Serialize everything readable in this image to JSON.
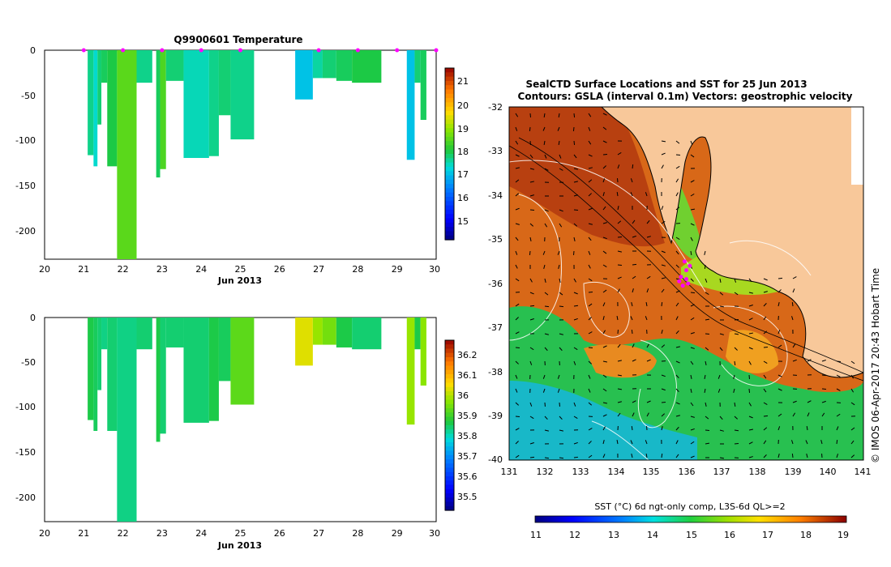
{
  "panel1": {
    "title": "Q9900601  Temperature",
    "xlabel": "Jun 2013",
    "x_ticks": [
      "20",
      "21",
      "22",
      "23",
      "24",
      "25",
      "26",
      "27",
      "28",
      "29",
      "30"
    ],
    "y_ticks": [
      "0",
      "-50",
      "-100",
      "-150",
      "-200"
    ],
    "colorbar_ticks": [
      "21",
      "20",
      "19",
      "18",
      "17",
      "16",
      "15"
    ]
  },
  "panel2": {
    "title": "",
    "xlabel": "Jun 2013",
    "x_ticks": [
      "20",
      "21",
      "22",
      "23",
      "24",
      "25",
      "26",
      "27",
      "28",
      "29",
      "30"
    ],
    "y_ticks": [
      "0",
      "-50",
      "-100",
      "-150",
      "-200"
    ],
    "colorbar_ticks": [
      "36.2",
      "36.1",
      "36",
      "35.9",
      "35.8",
      "35.7",
      "35.6",
      "35.5"
    ]
  },
  "map": {
    "title_line1": "SealCTD Surface Locations and SST for 25 Jun 2013",
    "title_line2": "Contours: GSLA (interval 0.1m) Vectors: geostrophic velocity",
    "x_ticks": [
      "131",
      "132",
      "133",
      "134",
      "135",
      "136",
      "137",
      "138",
      "139",
      "140",
      "141"
    ],
    "y_ticks": [
      "-32",
      "-33",
      "-34",
      "-35",
      "-36",
      "-37",
      "-38",
      "-39",
      "-40"
    ],
    "colorbar_label": "SST (°C) 6d ngt-only comp, L3S-6d QL>=2",
    "colorbar_ticks": [
      "11",
      "12",
      "13",
      "14",
      "15",
      "16",
      "17",
      "18",
      "19"
    ],
    "side_label": "© IMOS 06-Apr-2017 20:43 Hobart Time"
  },
  "chart_data": [
    {
      "type": "heatmap",
      "title": "Q9900601  Temperature",
      "xlabel": "Jun 2013",
      "ylabel": "",
      "xlim": [
        20,
        30
      ],
      "ylim": [
        -225,
        0
      ],
      "clim": [
        14.5,
        21.5
      ],
      "profile_markers_x": [
        21,
        22,
        23,
        24,
        25,
        27,
        28,
        29,
        30
      ],
      "profiles": [
        {
          "x0": 21.1,
          "x1": 21.25,
          "depth": 113,
          "value": 17.8
        },
        {
          "x0": 21.25,
          "x1": 21.35,
          "depth": 125,
          "value": 17.5
        },
        {
          "x0": 21.35,
          "x1": 21.45,
          "depth": 80,
          "value": 17.9
        },
        {
          "x0": 21.45,
          "x1": 21.6,
          "depth": 35,
          "value": 18.0
        },
        {
          "x0": 21.6,
          "x1": 21.85,
          "depth": 125,
          "value": 18.1
        },
        {
          "x0": 21.85,
          "x1": 22.35,
          "depth": 225,
          "value": 18.6
        },
        {
          "x0": 22.35,
          "x1": 22.75,
          "depth": 35,
          "value": 17.8
        },
        {
          "x0": 22.85,
          "x1": 22.95,
          "depth": 137,
          "value": 18.0
        },
        {
          "x0": 22.95,
          "x1": 23.1,
          "depth": 128,
          "value": 18.5
        },
        {
          "x0": 23.1,
          "x1": 23.55,
          "depth": 33,
          "value": 17.9
        },
        {
          "x0": 23.55,
          "x1": 24.2,
          "depth": 116,
          "value": 17.6
        },
        {
          "x0": 24.2,
          "x1": 24.45,
          "depth": 114,
          "value": 17.8
        },
        {
          "x0": 24.45,
          "x1": 24.75,
          "depth": 70,
          "value": 17.9
        },
        {
          "x0": 24.75,
          "x1": 25.35,
          "depth": 96,
          "value": 17.8
        },
        {
          "x0": 26.4,
          "x1": 26.85,
          "depth": 53,
          "value": 17.2
        },
        {
          "x0": 26.85,
          "x1": 27.1,
          "depth": 30,
          "value": 17.7
        },
        {
          "x0": 27.1,
          "x1": 27.45,
          "depth": 30,
          "value": 17.9
        },
        {
          "x0": 27.45,
          "x1": 27.85,
          "depth": 33,
          "value": 18.0
        },
        {
          "x0": 27.85,
          "x1": 28.6,
          "depth": 35,
          "value": 18.1
        },
        {
          "x0": 29.25,
          "x1": 29.45,
          "depth": 118,
          "value": 17.2
        },
        {
          "x0": 29.45,
          "x1": 29.6,
          "depth": 35,
          "value": 17.9
        },
        {
          "x0": 29.6,
          "x1": 29.75,
          "depth": 75,
          "value": 18.0
        }
      ]
    },
    {
      "type": "heatmap",
      "title": "",
      "xlabel": "Jun 2013",
      "ylabel": "",
      "xlim": [
        20,
        30
      ],
      "ylim": [
        -225,
        0
      ],
      "clim": [
        35.45,
        36.25
      ],
      "profiles": [
        {
          "x0": 21.1,
          "x1": 21.25,
          "depth": 113,
          "value": 35.86
        },
        {
          "x0": 21.25,
          "x1": 21.35,
          "depth": 125,
          "value": 35.85
        },
        {
          "x0": 21.35,
          "x1": 21.45,
          "depth": 80,
          "value": 35.84
        },
        {
          "x0": 21.45,
          "x1": 21.6,
          "depth": 35,
          "value": 35.83
        },
        {
          "x0": 21.6,
          "x1": 21.85,
          "depth": 125,
          "value": 35.84
        },
        {
          "x0": 21.85,
          "x1": 22.35,
          "depth": 225,
          "value": 35.83
        },
        {
          "x0": 22.35,
          "x1": 22.75,
          "depth": 35,
          "value": 35.84
        },
        {
          "x0": 22.85,
          "x1": 22.95,
          "depth": 137,
          "value": 35.86
        },
        {
          "x0": 22.95,
          "x1": 23.1,
          "depth": 128,
          "value": 35.84
        },
        {
          "x0": 23.1,
          "x1": 23.55,
          "depth": 33,
          "value": 35.84
        },
        {
          "x0": 23.55,
          "x1": 24.2,
          "depth": 116,
          "value": 35.84
        },
        {
          "x0": 24.2,
          "x1": 24.45,
          "depth": 114,
          "value": 35.86
        },
        {
          "x0": 24.45,
          "x1": 24.75,
          "depth": 70,
          "value": 35.85
        },
        {
          "x0": 24.75,
          "x1": 25.35,
          "depth": 96,
          "value": 35.92
        },
        {
          "x0": 26.4,
          "x1": 26.85,
          "depth": 53,
          "value": 36.02
        },
        {
          "x0": 26.85,
          "x1": 27.1,
          "depth": 30,
          "value": 35.97
        },
        {
          "x0": 27.1,
          "x1": 27.45,
          "depth": 30,
          "value": 35.94
        },
        {
          "x0": 27.45,
          "x1": 27.85,
          "depth": 33,
          "value": 35.86
        },
        {
          "x0": 27.85,
          "x1": 28.6,
          "depth": 35,
          "value": 35.84
        },
        {
          "x0": 29.25,
          "x1": 29.45,
          "depth": 118,
          "value": 35.97
        },
        {
          "x0": 29.45,
          "x1": 29.6,
          "depth": 35,
          "value": 35.86
        },
        {
          "x0": 29.6,
          "x1": 29.75,
          "depth": 75,
          "value": 35.96
        }
      ]
    },
    {
      "type": "heatmap",
      "title": "SealCTD Surface Locations and SST for 25 Jun 2013",
      "subtitle": "Contours: GSLA (interval 0.1m) Vectors: geostrophic velocity",
      "xlabel": "",
      "ylabel": "",
      "xlim": [
        131,
        141
      ],
      "ylim": [
        -40,
        -32
      ],
      "clim": [
        11,
        19
      ],
      "colorbar_label": "SST (°C) 6d ngt-only comp, L3S-6d QL>=2",
      "land_region": "north-east",
      "seal_locations": [
        [
          135.95,
          -35.5
        ],
        [
          136.0,
          -35.7
        ],
        [
          135.85,
          -35.85
        ],
        [
          136.05,
          -36.0
        ],
        [
          135.9,
          -36.05
        ],
        [
          136.1,
          -35.6
        ],
        [
          135.8,
          -35.95
        ],
        [
          136.0,
          -35.9
        ]
      ]
    }
  ]
}
